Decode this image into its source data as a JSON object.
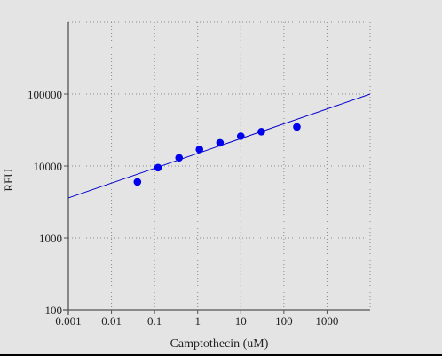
{
  "chart_data": {
    "type": "scatter",
    "xlabel": "Camptothecin (uM)",
    "ylabel": "RFU",
    "x_scale": "log",
    "y_scale": "log",
    "xlim": [
      0.001,
      10000
    ],
    "ylim": [
      100,
      1000000
    ],
    "x_ticks": [
      "0.001",
      "0.01",
      "0.1",
      "1",
      "10",
      "100",
      "1000"
    ],
    "x_tick_values": [
      0.001,
      0.01,
      0.1,
      1,
      10,
      100,
      1000
    ],
    "y_ticks": [
      "100",
      "1000",
      "10000",
      "100000"
    ],
    "y_tick_values": [
      100,
      1000,
      10000,
      100000
    ],
    "grid": true,
    "series": [
      {
        "points": [
          {
            "x": 0.04,
            "y": 6000
          },
          {
            "x": 0.12,
            "y": 9500
          },
          {
            "x": 0.37,
            "y": 13000
          },
          {
            "x": 1.1,
            "y": 17000
          },
          {
            "x": 3.3,
            "y": 21000
          },
          {
            "x": 10,
            "y": 26000
          },
          {
            "x": 30,
            "y": 30000
          },
          {
            "x": 200,
            "y": 35000
          }
        ],
        "color": "#0000ee"
      }
    ],
    "fit_line": {
      "points": [
        {
          "x": 0.001,
          "y": 3600
        },
        {
          "x": 10000,
          "y": 100000
        }
      ],
      "color": "#0000cc"
    }
  }
}
